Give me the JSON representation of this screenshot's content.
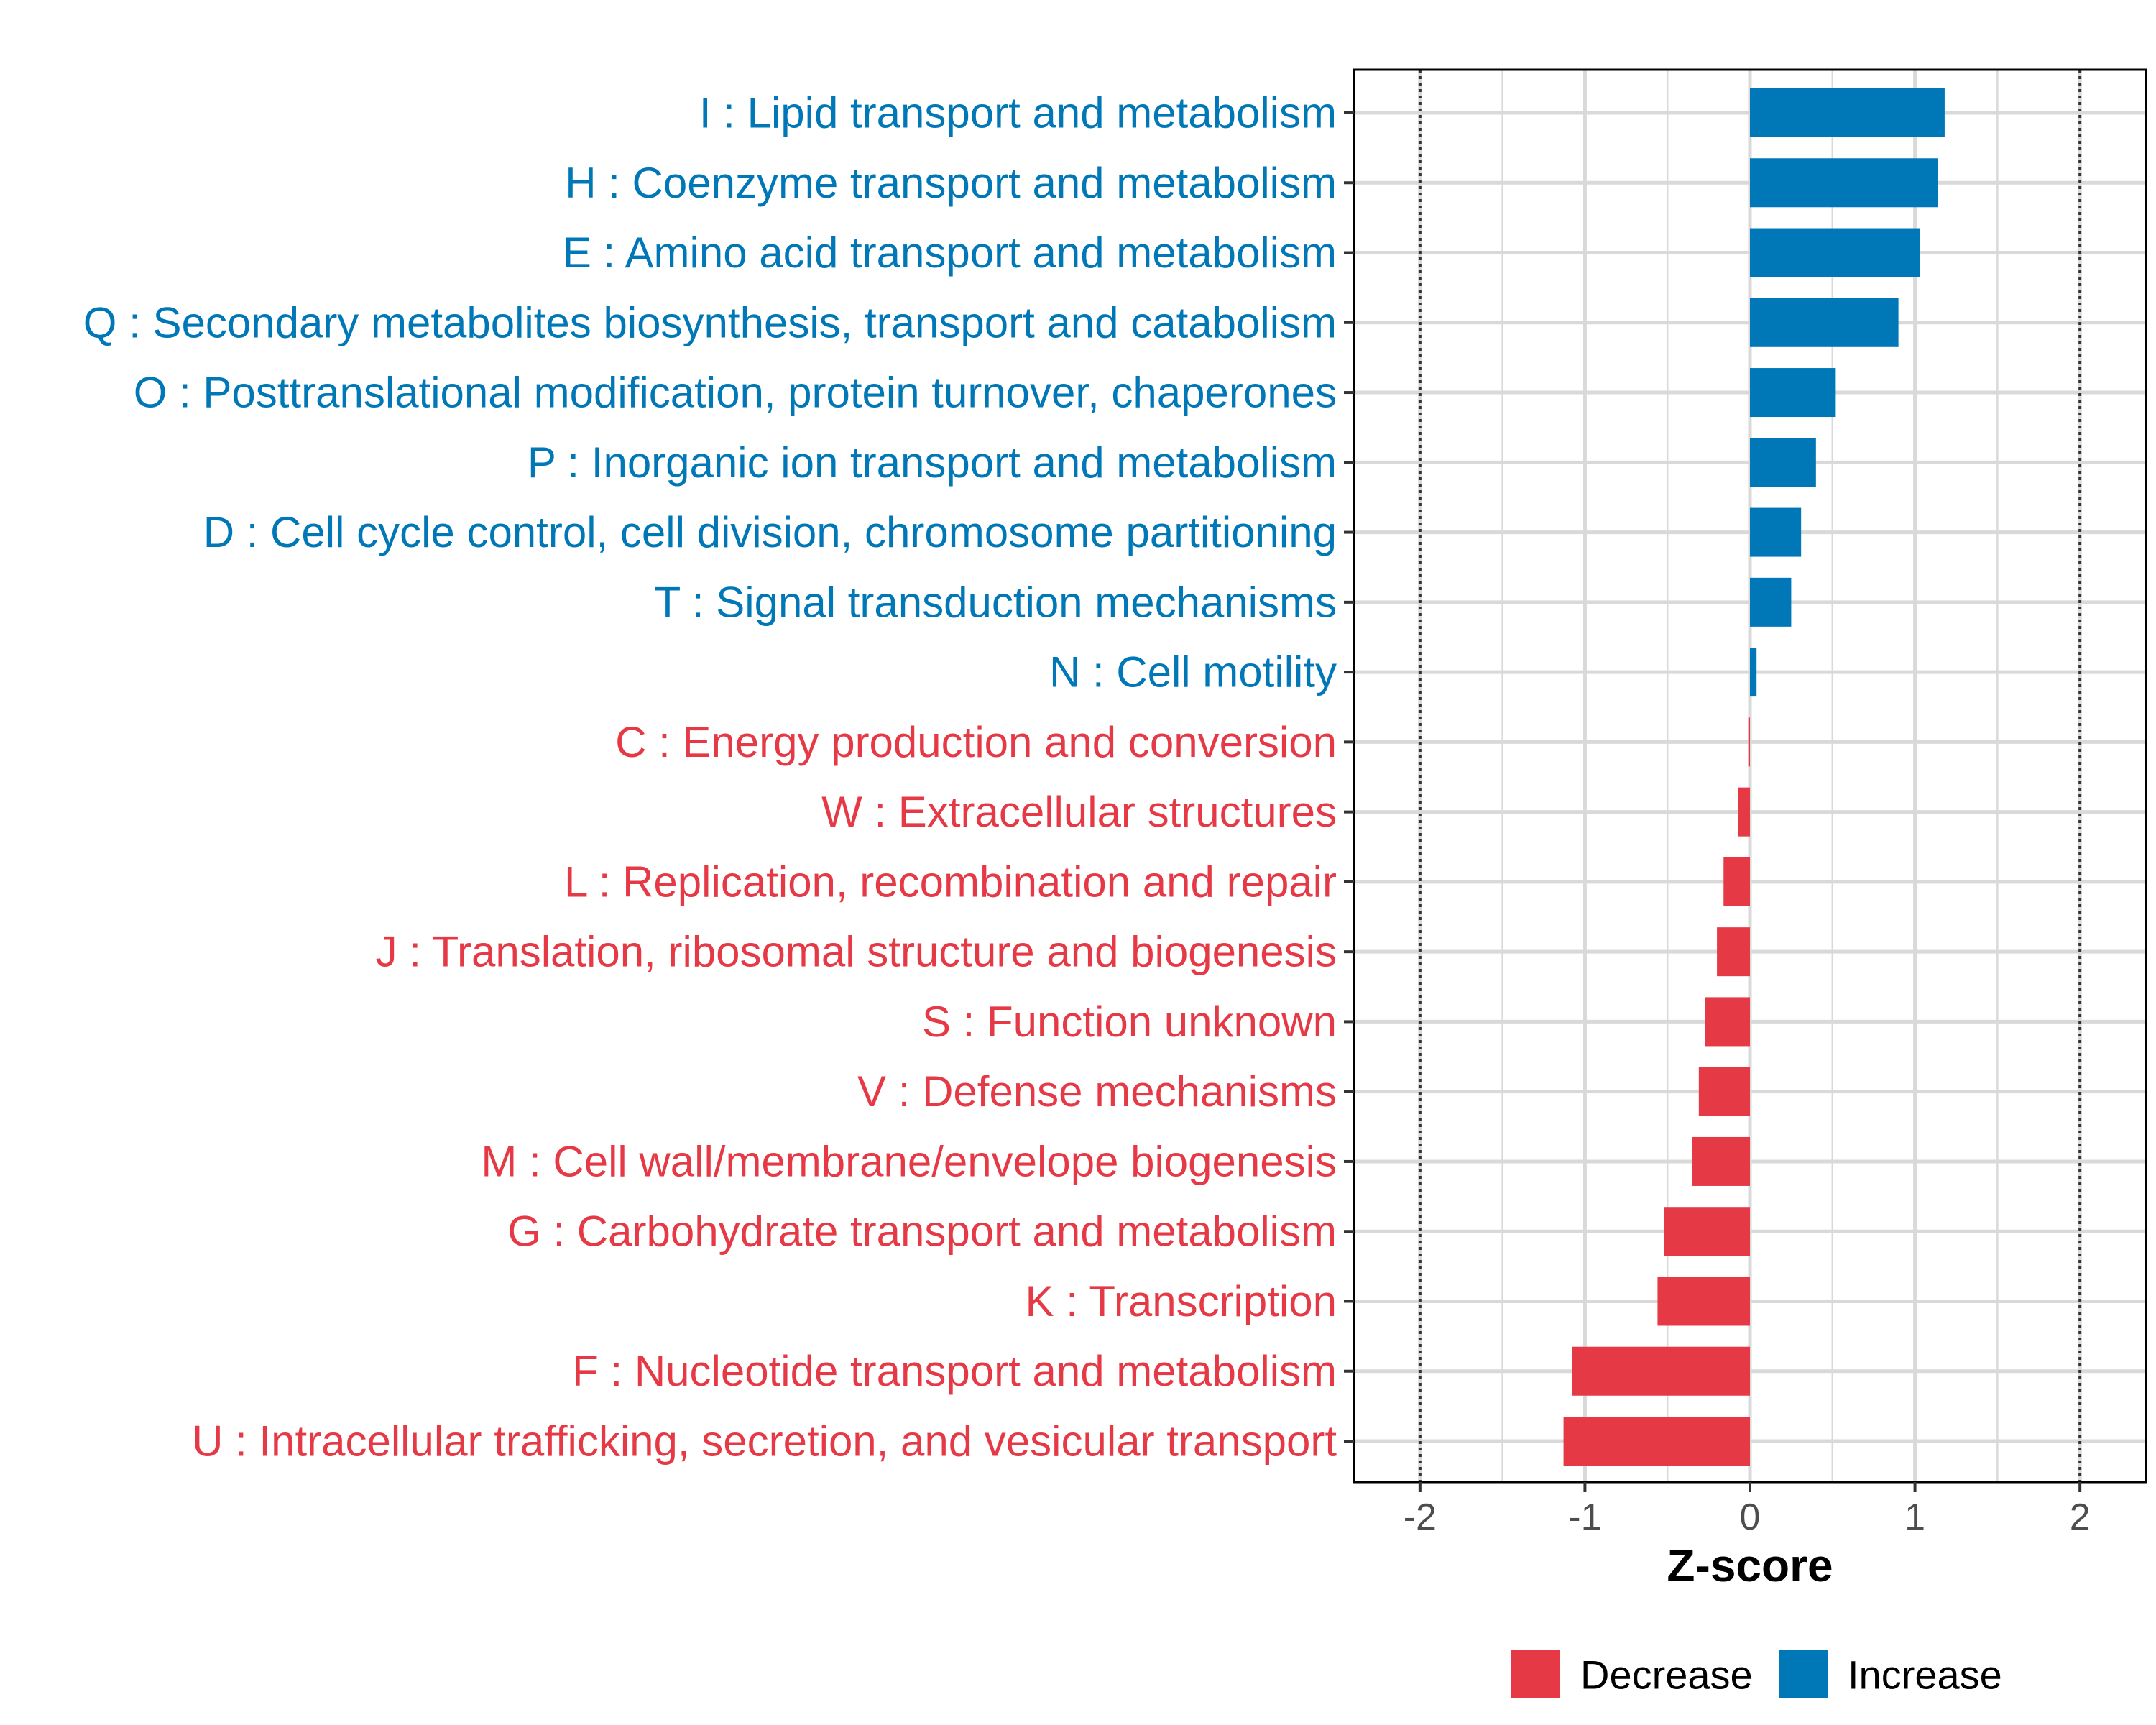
{
  "chart_data": {
    "type": "bar",
    "orientation": "horizontal",
    "title": "",
    "xlabel": "Z-score",
    "ylabel": "",
    "xlim": [
      -2.4,
      2.4
    ],
    "xticks": [
      "-2",
      "-1",
      "0",
      "1",
      "2"
    ],
    "xtick_values": [
      -2,
      -1,
      0,
      1,
      2
    ],
    "reference_lines": [
      -2,
      2
    ],
    "grid": true,
    "categories": [
      "I : Lipid transport and metabolism",
      "H : Coenzyme transport and metabolism",
      "E : Amino acid transport and metabolism",
      "Q : Secondary metabolites biosynthesis, transport and catabolism",
      "O : Posttranslational modification, protein turnover, chaperones",
      "P : Inorganic ion transport and metabolism",
      "D : Cell cycle control, cell division, chromosome partitioning",
      "T : Signal transduction mechanisms",
      "N : Cell motility",
      "C : Energy production and conversion",
      "W : Extracellular structures",
      "L : Replication, recombination and repair",
      "J : Translation, ribosomal structure and biogenesis",
      "S : Function unknown",
      "V : Defense mechanisms",
      "M : Cell wall/membrane/envelope biogenesis",
      "G : Carbohydrate transport and metabolism",
      "K : Transcription",
      "F : Nucleotide transport and metabolism",
      "U : Intracellular trafficking, secretion, and vesicular transport"
    ],
    "values": [
      1.18,
      1.14,
      1.03,
      0.9,
      0.52,
      0.4,
      0.31,
      0.25,
      0.04,
      -0.01,
      -0.07,
      -0.16,
      -0.2,
      -0.27,
      -0.31,
      -0.35,
      -0.52,
      -0.56,
      -1.08,
      -1.13
    ],
    "groups": [
      "Increase",
      "Increase",
      "Increase",
      "Increase",
      "Increase",
      "Increase",
      "Increase",
      "Increase",
      "Increase",
      "Decrease",
      "Decrease",
      "Decrease",
      "Decrease",
      "Decrease",
      "Decrease",
      "Decrease",
      "Decrease",
      "Decrease",
      "Decrease",
      "Decrease"
    ],
    "legend": {
      "position": "bottom-right",
      "entries": [
        {
          "label": "Decrease",
          "color": "#e63946"
        },
        {
          "label": "Increase",
          "color": "#0077b6"
        }
      ]
    },
    "colors": {
      "Decrease": "#e63946",
      "Increase": "#0077b6"
    }
  }
}
